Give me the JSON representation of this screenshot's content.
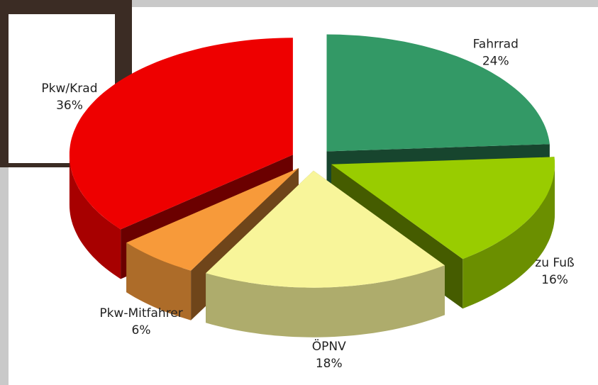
{
  "chart_data": {
    "type": "pie3d",
    "categories": [
      "Fahrrad",
      "zu Fuß",
      "ÖPNV",
      "Pkw-Mitfahrer",
      "Pkw/Krad"
    ],
    "values": [
      24,
      16,
      18,
      6,
      36
    ],
    "value_labels": [
      "24%",
      "16%",
      "18%",
      "6%",
      "36%"
    ],
    "colors": [
      "#339966",
      "#99cc00",
      "#f8f59a",
      "#f79a3a",
      "#ee0000"
    ]
  }
}
